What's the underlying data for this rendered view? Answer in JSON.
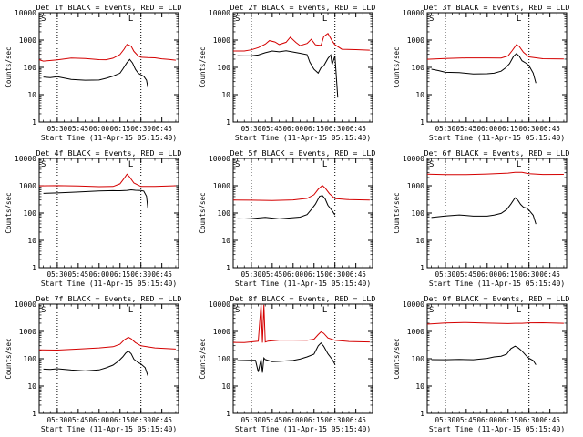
{
  "chart_data": [
    {
      "type": "line",
      "title": "Det 1f BLACK = Events, RED = LLD",
      "xlabel": "Start Time (11-Apr-15 05:15:40)",
      "ylabel": "Counts/sec",
      "corner_label": "S",
      "corner_label_right": "L",
      "yscale": "log",
      "ylim": [
        1,
        10000
      ],
      "ytick_labels": [
        "1",
        "10",
        "100",
        "1000",
        "10000"
      ],
      "xlim": [
        "05:17",
        "06:57"
      ],
      "xtick_labels": [
        "05:30",
        "05:45",
        "06:00",
        "06:15",
        "06:30",
        "06:45"
      ],
      "vlines": [
        "05:30",
        "06:30"
      ],
      "series": [
        {
          "color": "#d40000",
          "x": [
            "05:17",
            "05:20",
            "05:30",
            "05:40",
            "05:50",
            "06:00",
            "06:05",
            "06:10",
            "06:15",
            "06:18",
            "06:20",
            "06:23",
            "06:25",
            "06:28",
            "06:30",
            "06:35",
            "06:40",
            "06:45",
            "06:50",
            "06:55"
          ],
          "values": [
            200,
            180,
            190,
            210,
            200,
            190,
            200,
            230,
            300,
            450,
            650,
            580,
            400,
            280,
            240,
            220,
            210,
            200,
            200,
            195
          ]
        },
        {
          "color": "#000000",
          "x": [
            "05:20",
            "05:25",
            "05:30",
            "05:40",
            "05:50",
            "06:00",
            "06:05",
            "06:10",
            "06:15",
            "06:17",
            "06:20",
            "06:22",
            "06:24",
            "06:26",
            "06:28",
            "06:30",
            "06:32",
            "06:34",
            "06:35"
          ],
          "values": [
            42,
            40,
            45,
            38,
            36,
            35,
            38,
            45,
            60,
            90,
            160,
            200,
            140,
            80,
            60,
            55,
            50,
            35,
            18
          ]
        }
      ]
    },
    {
      "type": "line",
      "title": "Det 2f BLACK = Events, RED = LLD",
      "xlabel": "Start Time (11-Apr-15 05:15:40)",
      "ylabel": "Counts/sec",
      "corner_label": "S",
      "corner_label_right": "L",
      "yscale": "log",
      "ylim": [
        1,
        10000
      ],
      "ytick_labels": [
        "1",
        "10",
        "100",
        "1000",
        "10000"
      ],
      "xlim": [
        "05:17",
        "06:57"
      ],
      "xtick_labels": [
        "05:30",
        "05:45",
        "06:00",
        "06:15",
        "06:30",
        "06:45"
      ],
      "vlines": [
        "05:30",
        "06:30"
      ],
      "series": [
        {
          "color": "#d40000",
          "x": [
            "05:17",
            "05:25",
            "05:30",
            "05:35",
            "05:40",
            "05:43",
            "05:47",
            "05:50",
            "05:55",
            "05:58",
            "06:02",
            "06:05",
            "06:10",
            "06:13",
            "06:16",
            "06:20",
            "06:22",
            "06:25",
            "06:28",
            "06:30",
            "06:35",
            "06:45",
            "06:55"
          ],
          "values": [
            420,
            400,
            420,
            500,
            700,
            1000,
            900,
            700,
            800,
            1200,
            800,
            650,
            800,
            1100,
            650,
            600,
            1300,
            1800,
            1000,
            700,
            450,
            420,
            410
          ]
        },
        {
          "color": "#000000",
          "x": [
            "05:20",
            "05:25",
            "05:30",
            "05:35",
            "05:40",
            "05:45",
            "05:50",
            "05:55",
            "06:00",
            "06:05",
            "06:10",
            "06:12",
            "06:15",
            "06:18",
            "06:20",
            "06:22",
            "06:25",
            "06:27",
            "06:28",
            "06:30",
            "06:32"
          ],
          "values": [
            250,
            260,
            280,
            300,
            350,
            380,
            350,
            400,
            380,
            350,
            300,
            150,
            80,
            60,
            100,
            120,
            220,
            280,
            120,
            250,
            8
          ]
        }
      ]
    },
    {
      "type": "line",
      "title": "Det 3f BLACK = Events, RED = LLD",
      "xlabel": "Start Time (11-Apr-15 05:15:40)",
      "ylabel": "Counts/sec",
      "corner_label": "S",
      "corner_label_right": "L",
      "yscale": "log",
      "ylim": [
        1,
        10000
      ],
      "ytick_labels": [
        "1",
        "10",
        "100",
        "1000",
        "10000"
      ],
      "xlim": [
        "05:17",
        "06:57"
      ],
      "xtick_labels": [
        "05:30",
        "05:45",
        "06:00",
        "06:15",
        "06:30",
        "06:45"
      ],
      "vlines": [
        "05:30",
        "06:30"
      ],
      "series": [
        {
          "color": "#d40000",
          "x": [
            "05:17",
            "05:30",
            "05:45",
            "06:00",
            "06:10",
            "06:15",
            "06:18",
            "06:21",
            "06:23",
            "06:26",
            "06:30",
            "06:40",
            "06:55"
          ],
          "values": [
            200,
            200,
            210,
            220,
            230,
            280,
            420,
            650,
            550,
            350,
            250,
            220,
            210
          ]
        },
        {
          "color": "#000000",
          "x": [
            "05:20",
            "05:25",
            "05:30",
            "05:40",
            "05:50",
            "06:00",
            "06:05",
            "06:10",
            "06:13",
            "06:16",
            "06:19",
            "06:21",
            "06:23",
            "06:25",
            "06:28",
            "06:30",
            "06:33",
            "06:35"
          ],
          "values": [
            85,
            80,
            70,
            65,
            55,
            55,
            60,
            75,
            100,
            140,
            250,
            300,
            250,
            180,
            150,
            120,
            60,
            25
          ]
        }
      ]
    },
    {
      "type": "line",
      "title": "Det 4f BLACK = Events, RED = LLD",
      "xlabel": "Start Time (11-Apr-15 05:15:40)",
      "ylabel": "Counts/sec",
      "corner_label": "S",
      "corner_label_right": "L",
      "yscale": "log",
      "ylim": [
        1,
        10000
      ],
      "ytick_labels": [
        "1",
        "10",
        "100",
        "1000",
        "10000"
      ],
      "xlim": [
        "05:17",
        "06:57"
      ],
      "xtick_labels": [
        "05:30",
        "05:45",
        "06:00",
        "06:15",
        "06:30",
        "06:45"
      ],
      "vlines": [
        "05:30",
        "06:30"
      ],
      "series": [
        {
          "color": "#d40000",
          "x": [
            "05:17",
            "05:30",
            "05:45",
            "06:00",
            "06:10",
            "06:15",
            "06:18",
            "06:20",
            "06:22",
            "06:25",
            "06:30",
            "06:40",
            "06:55"
          ],
          "values": [
            950,
            950,
            960,
            970,
            1000,
            1200,
            1800,
            2500,
            2000,
            1300,
            1000,
            980,
            970
          ]
        },
        {
          "color": "#000000",
          "x": [
            "05:20",
            "05:30",
            "05:45",
            "06:00",
            "06:10",
            "06:15",
            "06:20",
            "06:23",
            "06:26",
            "06:30",
            "06:32",
            "06:34",
            "06:35"
          ],
          "values": [
            550,
            580,
            600,
            620,
            620,
            640,
            700,
            750,
            700,
            650,
            600,
            400,
            150
          ]
        }
      ]
    },
    {
      "type": "line",
      "title": "Det 5f BLACK = Events, RED = LLD",
      "xlabel": "Start Time (11-Apr-15 05:15:40)",
      "ylabel": "Counts/sec",
      "corner_label": "S",
      "corner_label_right": "L",
      "yscale": "log",
      "ylim": [
        1,
        10000
      ],
      "ytick_labels": [
        "1",
        "10",
        "100",
        "1000",
        "10000"
      ],
      "xlim": [
        "05:17",
        "06:57"
      ],
      "xtick_labels": [
        "05:30",
        "05:45",
        "06:00",
        "06:15",
        "06:30",
        "06:45"
      ],
      "vlines": [
        "05:30",
        "06:30"
      ],
      "series": [
        {
          "color": "#d40000",
          "x": [
            "05:17",
            "05:30",
            "05:45",
            "06:00",
            "06:10",
            "06:15",
            "06:18",
            "06:21",
            "06:23",
            "06:26",
            "06:30",
            "06:40",
            "06:55"
          ],
          "values": [
            280,
            290,
            300,
            320,
            350,
            450,
            700,
            1000,
            850,
            550,
            350,
            300,
            280
          ]
        },
        {
          "color": "#000000",
          "x": [
            "05:20",
            "05:25",
            "05:30",
            "05:40",
            "05:50",
            "06:00",
            "06:05",
            "06:10",
            "06:13",
            "06:16",
            "06:19",
            "06:21",
            "06:23",
            "06:25",
            "06:28",
            "06:30"
          ],
          "values": [
            65,
            62,
            60,
            65,
            60,
            70,
            75,
            90,
            130,
            200,
            400,
            450,
            350,
            200,
            120,
            80
          ]
        }
      ]
    },
    {
      "type": "line",
      "title": "Det 6f BLACK = Events, RED = LLD",
      "xlabel": "Start Time (11-Apr-15 05:15:40)",
      "ylabel": "Counts/sec",
      "corner_label": "S",
      "corner_label_right": "L",
      "yscale": "log",
      "ylim": [
        1,
        10000
      ],
      "ytick_labels": [
        "1",
        "10",
        "100",
        "1000",
        "10000"
      ],
      "xlim": [
        "05:17",
        "06:57"
      ],
      "xtick_labels": [
        "05:30",
        "05:45",
        "06:00",
        "06:15",
        "06:30",
        "06:45"
      ],
      "vlines": [
        "05:30",
        "06:30"
      ],
      "series": [
        {
          "color": "#d40000",
          "x": [
            "05:17",
            "05:30",
            "05:45",
            "06:00",
            "06:15",
            "06:20",
            "06:25",
            "06:30",
            "06:40",
            "06:55"
          ],
          "values": [
            2600,
            2650,
            2700,
            2750,
            2800,
            2900,
            3000,
            2850,
            2750,
            2700
          ]
        },
        {
          "color": "#000000",
          "x": [
            "05:20",
            "05:30",
            "05:40",
            "05:50",
            "06:00",
            "06:05",
            "06:10",
            "06:14",
            "06:17",
            "06:20",
            "06:22",
            "06:24",
            "06:26",
            "06:28",
            "06:30",
            "06:33",
            "06:35"
          ],
          "values": [
            70,
            75,
            80,
            75,
            80,
            90,
            100,
            130,
            200,
            350,
            300,
            220,
            170,
            150,
            120,
            80,
            40
          ]
        }
      ]
    },
    {
      "type": "line",
      "title": "Det 7f BLACK = Events, RED = LLD",
      "xlabel": "Start Time (11-Apr-15 05:15:40)",
      "ylabel": "Counts/sec",
      "corner_label": "S",
      "corner_label_right": "L",
      "yscale": "log",
      "ylim": [
        1,
        10000
      ],
      "ytick_labels": [
        "1",
        "10",
        "100",
        "1000",
        "10000"
      ],
      "xlim": [
        "05:17",
        "06:57"
      ],
      "xtick_labels": [
        "05:30",
        "05:45",
        "06:00",
        "06:15",
        "06:30",
        "06:45"
      ],
      "vlines": [
        "05:30",
        "06:30"
      ],
      "series": [
        {
          "color": "#d40000",
          "x": [
            "05:17",
            "05:30",
            "05:45",
            "06:00",
            "06:10",
            "06:15",
            "06:18",
            "06:21",
            "06:23",
            "06:26",
            "06:30",
            "06:40",
            "06:55"
          ],
          "values": [
            220,
            220,
            230,
            240,
            260,
            330,
            500,
            650,
            550,
            380,
            280,
            240,
            230
          ]
        },
        {
          "color": "#000000",
          "x": [
            "05:20",
            "05:25",
            "05:30",
            "05:40",
            "05:50",
            "06:00",
            "06:05",
            "06:10",
            "06:14",
            "06:17",
            "06:19",
            "06:21",
            "06:23",
            "06:25",
            "06:28",
            "06:30",
            "06:33",
            "06:35"
          ],
          "values": [
            40,
            38,
            42,
            40,
            38,
            40,
            45,
            55,
            80,
            120,
            170,
            200,
            150,
            90,
            70,
            65,
            50,
            25
          ]
        }
      ]
    },
    {
      "type": "line",
      "title": "Det 8f BLACK = Events, RED = LLD",
      "xlabel": "Start Time (11-Apr-15 05:15:40)",
      "ylabel": "Counts/sec",
      "corner_label": "S",
      "corner_label_right": "L",
      "yscale": "log",
      "ylim": [
        1,
        10000
      ],
      "ytick_labels": [
        "1",
        "10",
        "100",
        "1000",
        "10000"
      ],
      "xlim": [
        "05:17",
        "06:57"
      ],
      "xtick_labels": [
        "05:30",
        "05:45",
        "06:00",
        "06:15",
        "06:30",
        "06:45"
      ],
      "vlines": [
        "05:30",
        "06:30"
      ],
      "series": [
        {
          "color": "#d40000",
          "x": [
            "05:17",
            "05:25",
            "05:30",
            "05:35",
            "05:37",
            "05:38",
            "05:39",
            "05:40",
            "05:42",
            "05:50",
            "06:00",
            "06:10",
            "06:15",
            "06:18",
            "06:20",
            "06:22",
            "06:25",
            "06:30",
            "06:40",
            "06:55"
          ],
          "values": [
            420,
            400,
            400,
            410,
            10000,
            400,
            10000,
            420,
            430,
            450,
            460,
            480,
            550,
            800,
            950,
            800,
            550,
            480,
            450,
            430
          ]
        },
        {
          "color": "#000000",
          "x": [
            "05:20",
            "05:30",
            "05:33",
            "05:35",
            "05:37",
            "05:38",
            "05:39",
            "05:40",
            "05:45",
            "05:50",
            "06:00",
            "06:05",
            "06:10",
            "06:15",
            "06:18",
            "06:20",
            "06:22",
            "06:25",
            "06:28",
            "06:30"
          ],
          "values": [
            80,
            85,
            90,
            35,
            100,
            30,
            100,
            90,
            80,
            85,
            90,
            95,
            110,
            140,
            300,
            400,
            300,
            150,
            90,
            60
          ]
        }
      ]
    },
    {
      "type": "line",
      "title": "Det 9f BLACK = Events, RED = LLD",
      "xlabel": "Start Time (11-Apr-15 05:15:40)",
      "ylabel": "Counts/sec",
      "corner_label": "S",
      "corner_label_right": "L",
      "yscale": "log",
      "ylim": [
        1,
        10000
      ],
      "ytick_labels": [
        "1",
        "10",
        "100",
        "1000",
        "10000"
      ],
      "xlim": [
        "05:17",
        "06:57"
      ],
      "xtick_labels": [
        "05:30",
        "05:45",
        "06:00",
        "06:15",
        "06:30",
        "06:45"
      ],
      "vlines": [
        "05:30",
        "06:30"
      ],
      "series": [
        {
          "color": "#d40000",
          "x": [
            "05:17",
            "05:30",
            "05:45",
            "06:00",
            "06:15",
            "06:20",
            "06:25",
            "06:30",
            "06:40",
            "06:55"
          ],
          "values": [
            1900,
            1950,
            2000,
            1950,
            2000,
            2100,
            2050,
            2000,
            1950,
            1900
          ]
        },
        {
          "color": "#000000",
          "x": [
            "05:20",
            "05:30",
            "05:40",
            "05:50",
            "06:00",
            "06:05",
            "06:10",
            "06:14",
            "06:17",
            "06:20",
            "06:22",
            "06:24",
            "06:26",
            "06:28",
            "06:30",
            "06:33",
            "06:35"
          ],
          "values": [
            90,
            95,
            100,
            95,
            100,
            110,
            120,
            150,
            250,
            300,
            250,
            200,
            160,
            130,
            110,
            90,
            60
          ]
        }
      ]
    }
  ]
}
